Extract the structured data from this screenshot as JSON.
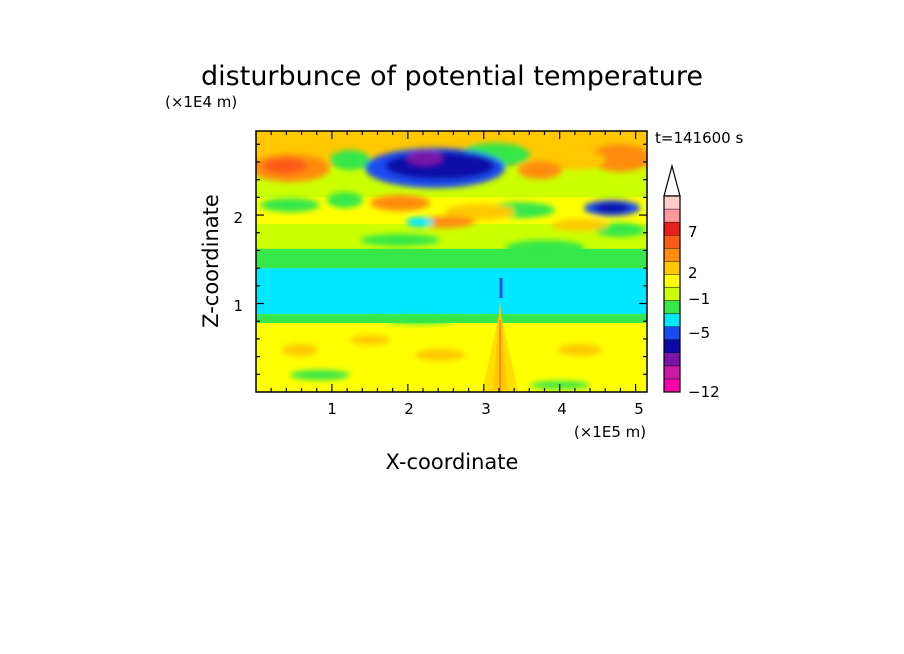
{
  "chart_data": {
    "type": "heatmap",
    "title": "disturbunce of potential temperature",
    "time_label": "t=141600 s",
    "xlabel": "X-coordinate",
    "ylabel": "Z-coordinate",
    "x_unit": "(×1E5 m)",
    "y_unit": "(×1E4 m)",
    "xlim": [
      0,
      5.15
    ],
    "ylim": [
      0,
      2.95
    ],
    "x_ticks": [
      "1",
      "2",
      "3",
      "4",
      "5"
    ],
    "y_ticks": [
      "1",
      "2"
    ],
    "colorbar": {
      "labels": [
        {
          "text": "7",
          "level": 7
        },
        {
          "text": "2",
          "level": 2
        },
        {
          "text": "−1",
          "level": -1
        },
        {
          "text": "−5",
          "level": -5
        },
        {
          "text": "−12",
          "level": -12
        }
      ],
      "colors": [
        "#ff00aa",
        "#cc1aa6",
        "#7a14a8",
        "#0a0aa8",
        "#1a4cf2",
        "#00e8ff",
        "#36e84a",
        "#ccff00",
        "#ffff00",
        "#ffc800",
        "#ff8c0f",
        "#ff5a14",
        "#e82020",
        "#ff9999",
        "#ffcccc"
      ]
    },
    "bands": [
      {
        "z": [
          0.0,
          0.35
        ],
        "level": 2
      },
      {
        "z": [
          0.35,
          0.78
        ],
        "level": 2
      },
      {
        "z": [
          0.78,
          0.88
        ],
        "level": 0
      },
      {
        "z": [
          0.88,
          1.4
        ],
        "level": -1
      },
      {
        "z": [
          1.4,
          1.62
        ],
        "level": 0
      },
      {
        "z": [
          1.62,
          1.9
        ],
        "level": 1
      },
      {
        "z": [
          1.9,
          2.2
        ],
        "level": 2
      },
      {
        "z": [
          2.2,
          2.55
        ],
        "level": 1
      },
      {
        "z": [
          2.55,
          2.95
        ],
        "level": 3
      }
    ],
    "features": [
      {
        "x": 0.3,
        "z": 2.6,
        "level": 5
      },
      {
        "x": 4.9,
        "z": 2.7,
        "level": 5
      },
      {
        "x": 2.3,
        "z": 2.55,
        "level": -5
      },
      {
        "x": 2.4,
        "z": 2.65,
        "level": -8
      },
      {
        "x": 4.6,
        "z": 2.07,
        "level": -5
      },
      {
        "x": 3.18,
        "z": 0.4,
        "level": 4
      },
      {
        "x": 3.18,
        "z": 1.15,
        "level": -5
      }
    ]
  }
}
